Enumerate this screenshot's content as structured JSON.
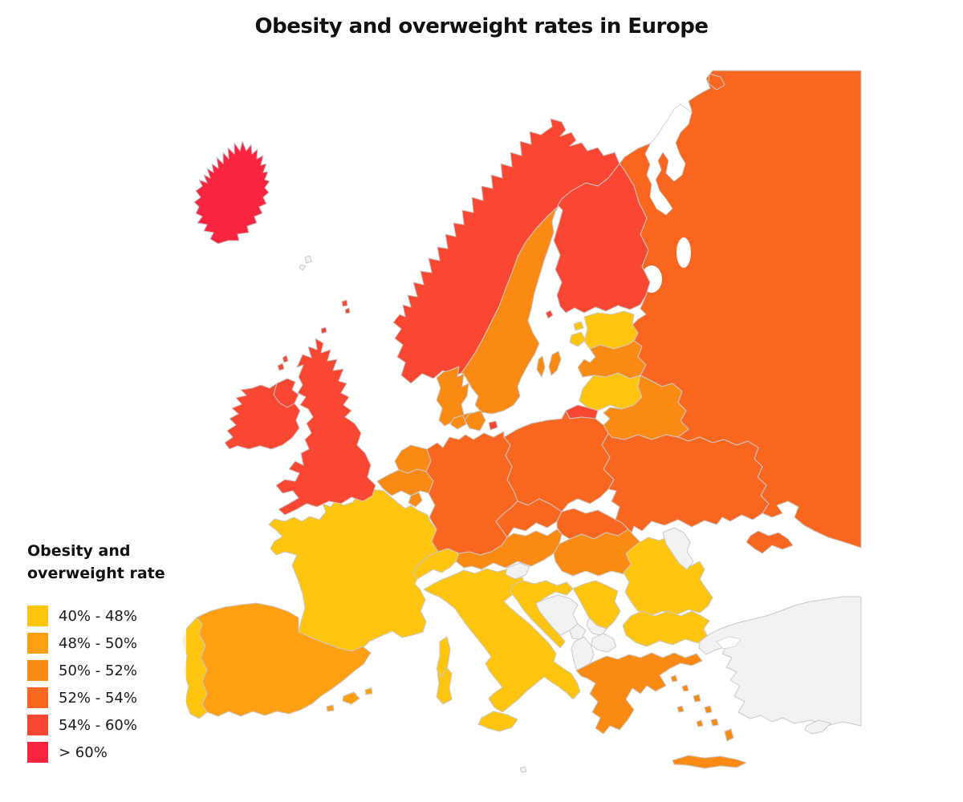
{
  "title": "Obesity and overweight rates in Europe",
  "legend": {
    "title_line1": "Obesity and",
    "title_line2": "overweight rate",
    "items": [
      {
        "label": "40% - 48%",
        "color": "#FFC40D"
      },
      {
        "label": "48% - 50%",
        "color": "#FF9F11"
      },
      {
        "label": "50% - 52%",
        "color": "#FB8A14"
      },
      {
        "label": "52% - 54%",
        "color": "#F9661F"
      },
      {
        "label": "54% - 60%",
        "color": "#F94732"
      },
      {
        "label": "> 60%",
        "color": "#F9253F"
      }
    ]
  },
  "map": {
    "sea_color": "#FFFFFF",
    "border_color": "#C9C9C9",
    "no_data_color": "#F2F2F2",
    "no_data_border_color": "#C4C4C4",
    "countries": [
      {
        "name": "Iceland",
        "category": "> 60%"
      },
      {
        "name": "Norway",
        "category": "54% - 60%"
      },
      {
        "name": "Finland",
        "category": "54% - 60%"
      },
      {
        "name": "United Kingdom",
        "category": "54% - 60%"
      },
      {
        "name": "Ireland",
        "category": "54% - 60%"
      },
      {
        "name": "Kaliningrad (Russia)",
        "category": "54% - 60%"
      },
      {
        "name": "Sweden",
        "category": "50% - 52%"
      },
      {
        "name": "Denmark",
        "category": "50% - 52%"
      },
      {
        "name": "Netherlands",
        "category": "50% - 52%"
      },
      {
        "name": "Belgium",
        "category": "50% - 52%"
      },
      {
        "name": "Luxembourg",
        "category": "50% - 52%"
      },
      {
        "name": "Austria",
        "category": "50% - 52%"
      },
      {
        "name": "Hungary",
        "category": "50% - 52%"
      },
      {
        "name": "Latvia",
        "category": "50% - 52%"
      },
      {
        "name": "Belarus",
        "category": "50% - 52%"
      },
      {
        "name": "Greece",
        "category": "50% - 52%"
      },
      {
        "name": "Spain",
        "category": "48% - 50%"
      },
      {
        "name": "France",
        "category": "40% - 48%"
      },
      {
        "name": "Switzerland",
        "category": "40% - 48%"
      },
      {
        "name": "Italy",
        "category": "40% - 48%"
      },
      {
        "name": "Portugal",
        "category": "40% - 48%"
      },
      {
        "name": "Estonia",
        "category": "40% - 48%"
      },
      {
        "name": "Lithuania",
        "category": "40% - 48%"
      },
      {
        "name": "Romania",
        "category": "40% - 48%"
      },
      {
        "name": "Serbia",
        "category": "40% - 48%"
      },
      {
        "name": "Bulgaria",
        "category": "40% - 48%"
      },
      {
        "name": "Croatia",
        "category": "40% - 48%"
      },
      {
        "name": "Germany",
        "category": "52% - 54%"
      },
      {
        "name": "Poland",
        "category": "52% - 54%"
      },
      {
        "name": "Czechia",
        "category": "52% - 54%"
      },
      {
        "name": "Slovakia",
        "category": "52% - 54%"
      },
      {
        "name": "Ukraine",
        "category": "52% - 54%"
      },
      {
        "name": "Russia",
        "category": "52% - 54%"
      },
      {
        "name": "Slovenia",
        "category": "No data"
      },
      {
        "name": "Bosnia and Herzegovina",
        "category": "No data"
      },
      {
        "name": "Montenegro",
        "category": "No data"
      },
      {
        "name": "Kosovo",
        "category": "No data"
      },
      {
        "name": "North Macedonia",
        "category": "No data"
      },
      {
        "name": "Albania",
        "category": "No data"
      },
      {
        "name": "Moldova",
        "category": "No data"
      },
      {
        "name": "Turkey",
        "category": "No data"
      },
      {
        "name": "Cyprus",
        "category": "No data"
      },
      {
        "name": "Faroe Islands",
        "category": "No data"
      },
      {
        "name": "Malta",
        "category": "No data"
      }
    ]
  }
}
